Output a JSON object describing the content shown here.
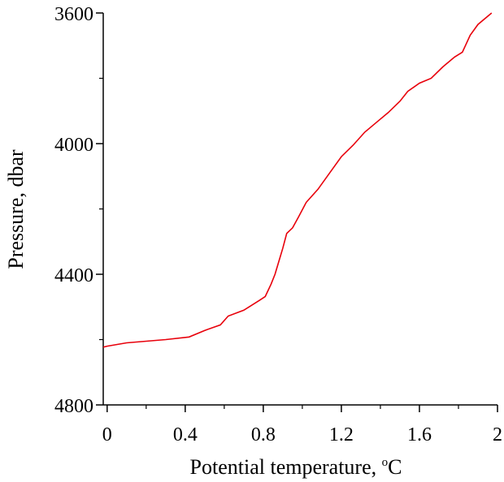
{
  "chart_data": {
    "type": "line",
    "title": "",
    "xlabel": "Potential temperature,",
    "xlabel_sup": "o",
    "xlabel_unit": "C",
    "ylabel": "Pressure, dbar",
    "xlim": [
      -0.02,
      2.0
    ],
    "ylim": [
      4800,
      3600
    ],
    "y_inverted": true,
    "grid": false,
    "x_ticks": [
      0,
      0.4,
      0.8,
      1.2,
      1.6,
      2
    ],
    "x_tick_labels": [
      "0",
      "0.4",
      "0.8",
      "1.2",
      "1.6",
      "2"
    ],
    "y_ticks": [
      3600,
      4000,
      4400,
      4800
    ],
    "y_tick_labels": [
      "3600",
      "4000",
      "4400",
      "4800"
    ],
    "line_color": "#e8000b",
    "series": [
      {
        "x": [
          -0.02,
          0.0,
          0.1,
          0.2,
          0.3,
          0.42,
          0.5,
          0.58,
          0.62,
          0.7,
          0.78,
          0.81,
          0.84,
          0.86,
          0.88,
          0.9,
          0.92,
          0.95,
          0.98,
          1.02,
          1.08,
          1.14,
          1.2,
          1.26,
          1.32,
          1.38,
          1.44,
          1.5,
          1.54,
          1.6,
          1.66,
          1.72,
          1.78,
          1.82,
          1.86,
          1.9,
          1.97
        ],
        "y": [
          4623,
          4620,
          4610,
          4605,
          4600,
          4592,
          4572,
          4555,
          4528,
          4510,
          4480,
          4468,
          4430,
          4400,
          4360,
          4320,
          4275,
          4258,
          4225,
          4180,
          4140,
          4090,
          4040,
          4005,
          3965,
          3935,
          3905,
          3870,
          3840,
          3815,
          3800,
          3765,
          3735,
          3720,
          3668,
          3635,
          3600
        ]
      }
    ]
  }
}
